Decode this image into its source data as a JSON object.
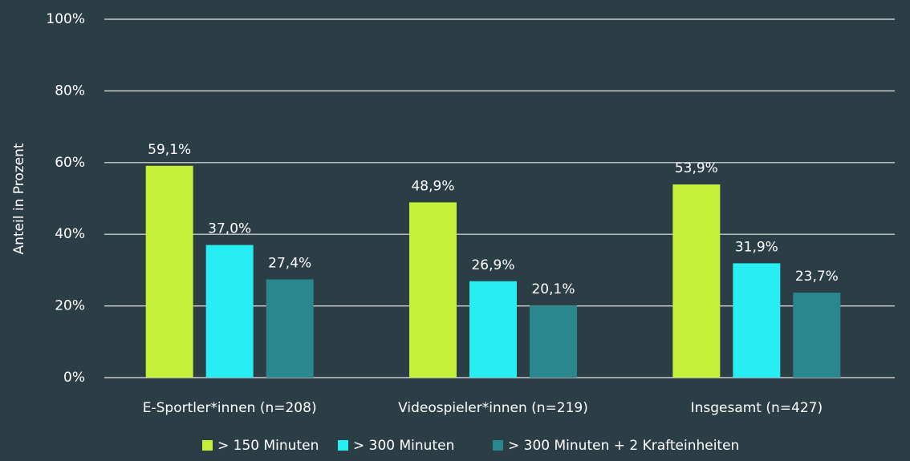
{
  "chart_data": {
    "type": "bar",
    "y_label": "Anteil in Prozent",
    "categories": [
      "E-Sportler*innen (n=208)",
      "Videospieler*innen (n=219)",
      "Insgesamt (n=427)"
    ],
    "series": [
      {
        "name": "> 150 Minuten",
        "color": "#c5f03a",
        "values": [
          59.1,
          48.9,
          53.9
        ],
        "value_labels": [
          "59,1%",
          "48,9%",
          "53,9%"
        ]
      },
      {
        "name": "> 300 Minuten",
        "color": "#26eef3",
        "values": [
          37.0,
          26.9,
          31.9
        ],
        "value_labels": [
          "37,0%",
          "26,9%",
          "31,9%"
        ]
      },
      {
        "name": "> 300 Minuten + 2 Krafteinheiten",
        "color": "#2a878e",
        "values": [
          27.4,
          20.1,
          23.7
        ],
        "value_labels": [
          "27,4%",
          "20,1%",
          "23,7%"
        ]
      }
    ],
    "ylim": [
      0,
      100
    ],
    "yticks": [
      {
        "value": 0,
        "label": "0%"
      },
      {
        "value": 20,
        "label": "20%"
      },
      {
        "value": 40,
        "label": "40%"
      },
      {
        "value": 60,
        "label": "60%"
      },
      {
        "value": 80,
        "label": "80%"
      },
      {
        "value": 100,
        "label": "100%"
      }
    ],
    "grid": true
  }
}
